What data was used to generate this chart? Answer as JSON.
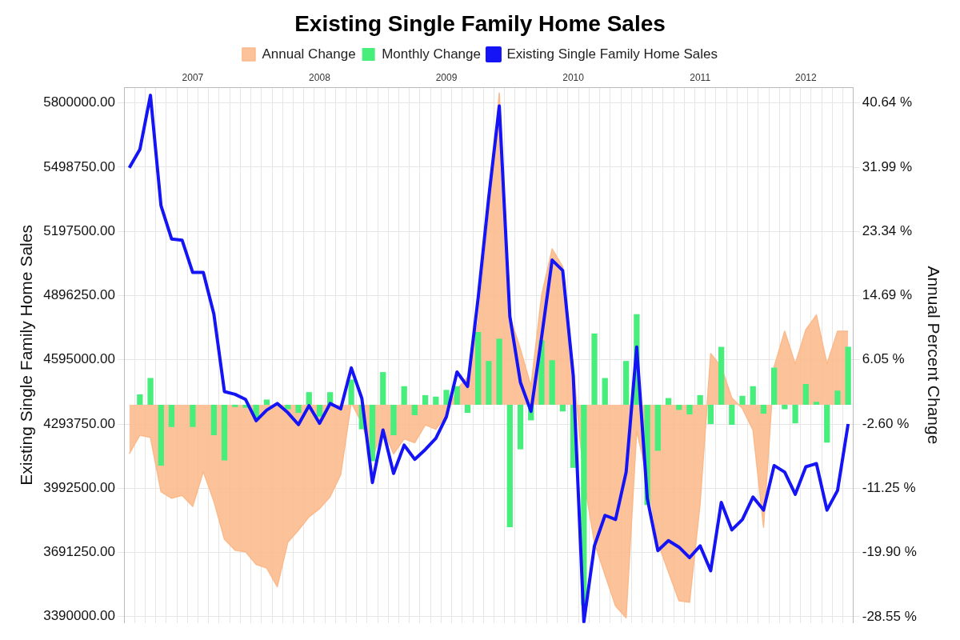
{
  "chart_data": {
    "type": "line",
    "title": "Existing Single Family Home Sales",
    "ylabel": "Existing Single Family Home Sales",
    "y2label": "Annual Percent Change",
    "categories": [
      null,
      null,
      null,
      null,
      null,
      null,
      "2007",
      null,
      null,
      null,
      null,
      null,
      null,
      null,
      null,
      null,
      null,
      null,
      "2008",
      null,
      null,
      null,
      null,
      null,
      null,
      null,
      null,
      null,
      null,
      null,
      "2009",
      null,
      null,
      null,
      null,
      null,
      null,
      null,
      null,
      null,
      null,
      null,
      "2010",
      null,
      null,
      null,
      null,
      null,
      null,
      null,
      null,
      null,
      null,
      null,
      "2011",
      null,
      null,
      null,
      null,
      null,
      null,
      null,
      null,
      null,
      "2012",
      null,
      null,
      null,
      null
    ],
    "series": [
      {
        "name": "Annual Change",
        "type": "area",
        "axis": "y2",
        "color": "#fbb98a",
        "values": [
          -6.6,
          -4.1,
          -4.4,
          -11.7,
          -12.6,
          -12.2,
          -13.7,
          -9,
          -13,
          -18.1,
          -19.6,
          -19.8,
          -21.5,
          -22,
          -24.5,
          -18.5,
          -16.9,
          -15.1,
          -14,
          -12.4,
          -9.4,
          0.3,
          -2.5,
          -7.2,
          -3.2,
          -6.6,
          -4.6,
          -5.1,
          -2.7,
          -3.3,
          -1.4,
          2.1,
          3.7,
          11.2,
          25.4,
          42,
          11.9,
          7.5,
          2.5,
          14.7,
          21,
          18.6,
          5,
          -10,
          -18.6,
          -22.9,
          -27.1,
          -28.7,
          -3.5,
          -9.8,
          -18.6,
          -22.5,
          -26.4,
          -26.6,
          -13.3,
          6.9,
          5.1,
          0.9,
          -0.5,
          -3.4,
          -16.5,
          5.1,
          9.9,
          5.5,
          10.1,
          12.1,
          5.5,
          9.9,
          9.9
        ]
      },
      {
        "name": "Monthly Change",
        "type": "bar",
        "axis": "y2",
        "color": "#47ee7c",
        "values": [
          null,
          1.4,
          3.6,
          -8.2,
          -3,
          0,
          -3,
          0,
          -4.1,
          -7.5,
          -0.3,
          -0.4,
          -2,
          0.7,
          null,
          -0.6,
          -1.1,
          1.7,
          -1.6,
          1.7,
          null,
          3.4,
          -3.3,
          -7.6,
          4.4,
          -4.1,
          2.5,
          -1.4,
          1.3,
          1.1,
          2,
          2.5,
          -1.1,
          9.8,
          5.9,
          8.9,
          -16.5,
          -6,
          -2.1,
          8.7,
          6,
          -0.9,
          -8.5,
          -27,
          9.6,
          3.6,
          0,
          5.9,
          12.2,
          -13.5,
          -6.2,
          0.9,
          -0.7,
          -1.3,
          1.3,
          -2.6,
          7.8,
          -2.7,
          1.2,
          2.5,
          -1.2,
          5,
          -0.6,
          -2.5,
          2.8,
          0.4,
          -5.1,
          1.9,
          7.8
        ]
      },
      {
        "name": "Existing Single Family Home Sales",
        "axis": "y",
        "color": "#1414f5",
        "values": [
          5496000,
          5582000,
          5836000,
          5318000,
          5162000,
          5156000,
          5005000,
          5005000,
          4810000,
          4446000,
          4433000,
          4409000,
          4309000,
          4359000,
          4390000,
          4347000,
          4291000,
          4380000,
          4297000,
          4390000,
          4365000,
          4557000,
          4414000,
          4019000,
          4266000,
          4062000,
          4195000,
          4128000,
          4174000,
          4227000,
          4328000,
          4538000,
          4470000,
          4884000,
          5355000,
          5786000,
          4799000,
          4489000,
          4353000,
          4700000,
          5063000,
          5014000,
          4520000,
          3365000,
          3722000,
          3865000,
          3846000,
          4068000,
          4655000,
          3945000,
          3700000,
          3747000,
          3716000,
          3667000,
          3722000,
          3605000,
          3926000,
          3797000,
          3846000,
          3951000,
          3890000,
          4099000,
          4068000,
          3964000,
          4093000,
          4108000,
          3890000,
          3982000,
          4294000
        ]
      }
    ],
    "ylim": [
      3360000,
      5874000
    ],
    "yticks": [
      {
        "value": 3390000,
        "label": "3390000.00"
      },
      {
        "value": 3691250,
        "label": "3691250.00"
      },
      {
        "value": 3992500,
        "label": "3992500.00"
      },
      {
        "value": 4293750,
        "label": "4293750.00"
      },
      {
        "value": 4595000,
        "label": "4595000.00"
      },
      {
        "value": 4896250,
        "label": "4896250.00"
      },
      {
        "value": 5197500,
        "label": "5197500.00"
      },
      {
        "value": 5498750,
        "label": "5498750.00"
      },
      {
        "value": 5800000,
        "label": "5800000.00"
      }
    ],
    "y2lim": [
      -29.4,
      42.77
    ],
    "y2ticks": [
      {
        "value": -28.55,
        "label": "-28.55 %"
      },
      {
        "value": -19.9,
        "label": "-19.90 %"
      },
      {
        "value": -11.25,
        "label": "-11.25 %"
      },
      {
        "value": -2.6,
        "label": "-2.60 %"
      },
      {
        "value": 6.05,
        "label": "6.05 %"
      },
      {
        "value": 14.69,
        "label": "14.69 %"
      },
      {
        "value": 23.34,
        "label": "23.34 %"
      },
      {
        "value": 31.99,
        "label": "31.99 %"
      },
      {
        "value": 40.64,
        "label": "40.64 %"
      }
    ],
    "grid": true,
    "legend": "top",
    "marker": "none",
    "line_style": "solid"
  }
}
